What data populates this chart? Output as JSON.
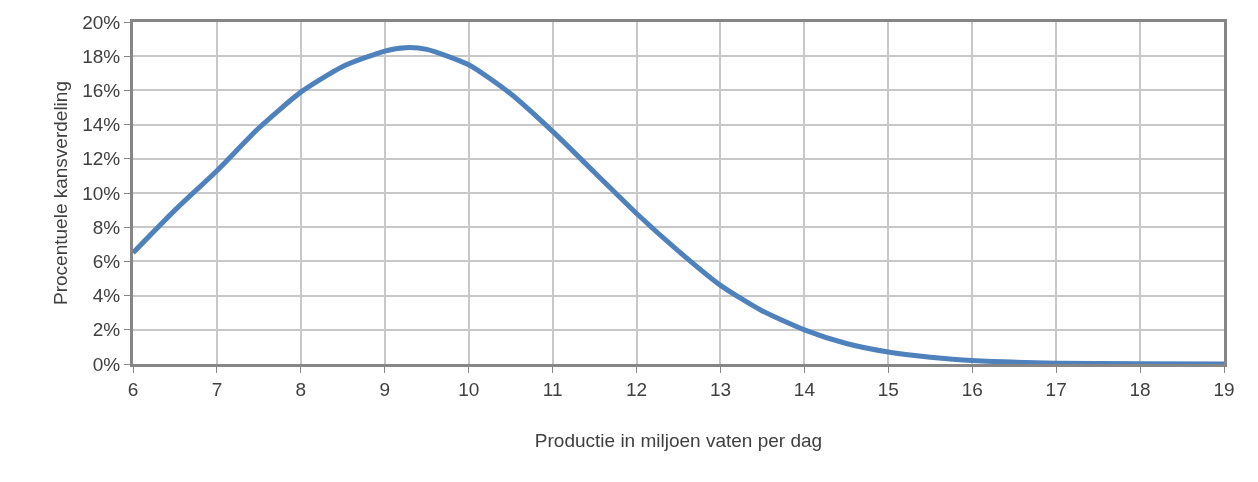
{
  "chart_data": {
    "type": "line",
    "xlabel": "Productie in miljoen vaten per dag",
    "ylabel": "Procentuele kansverdeling",
    "x": [
      6,
      6.5,
      7,
      7.5,
      8,
      8.5,
      9,
      9.25,
      9.5,
      10,
      10.5,
      11,
      11.5,
      12,
      12.5,
      13,
      13.5,
      14,
      14.5,
      15,
      15.5,
      16,
      17,
      18,
      19
    ],
    "series": [
      {
        "color": "#4f81bd",
        "values": [
          6.5,
          9.0,
          11.3,
          13.8,
          15.9,
          17.4,
          18.3,
          18.5,
          18.4,
          17.5,
          15.8,
          13.6,
          11.2,
          8.8,
          6.6,
          4.6,
          3.1,
          2.0,
          1.2,
          0.7,
          0.4,
          0.2,
          0.05,
          0.01,
          0.0
        ]
      }
    ],
    "xlim": [
      6,
      19
    ],
    "xticks": [
      6,
      7,
      8,
      9,
      10,
      11,
      12,
      13,
      14,
      15,
      16,
      17,
      18,
      19
    ],
    "ylim": [
      0,
      20
    ],
    "yticks": [
      {
        "value": 0,
        "label": "0%"
      },
      {
        "value": 2,
        "label": "2%"
      },
      {
        "value": 4,
        "label": "4%"
      },
      {
        "value": 6,
        "label": "6%"
      },
      {
        "value": 8,
        "label": "8%"
      },
      {
        "value": 10,
        "label": "10%"
      },
      {
        "value": 12,
        "label": "12%"
      },
      {
        "value": 14,
        "label": "14%"
      },
      {
        "value": 16,
        "label": "16%"
      },
      {
        "value": 18,
        "label": "18%"
      },
      {
        "value": 20,
        "label": "20%"
      }
    ],
    "grid": true,
    "marker": "none",
    "line_style": "solid"
  }
}
